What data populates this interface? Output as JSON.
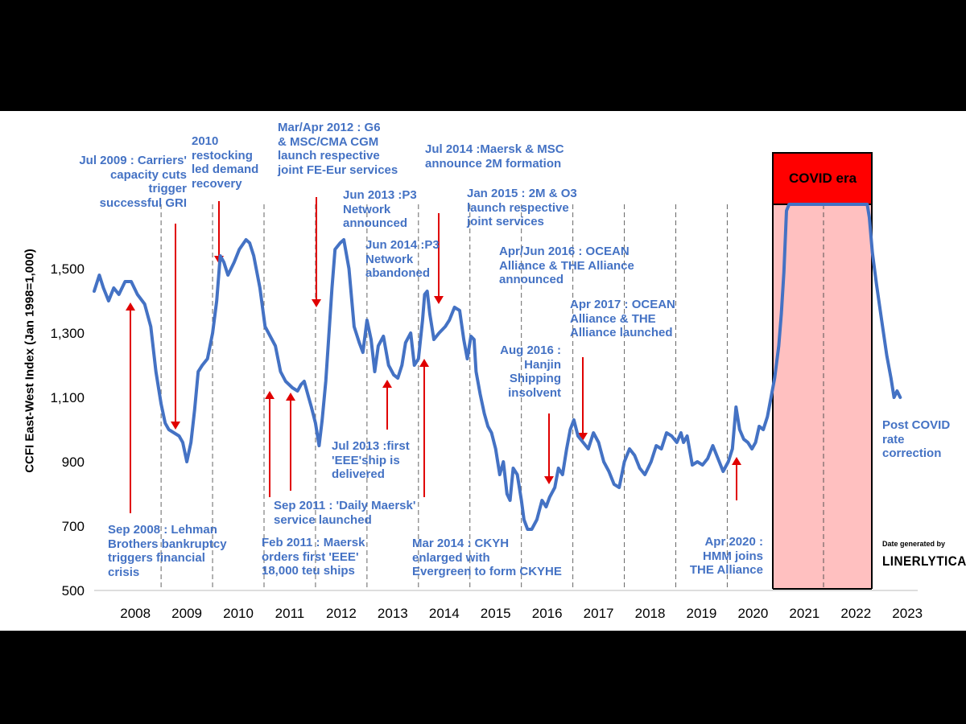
{
  "chart_data": {
    "type": "line",
    "ylabel": "CCFI East-West Index (Jan 1998=1,000)",
    "ylim": [
      500,
      1700
    ],
    "y_ticks": [
      500,
      700,
      900,
      1100,
      1300,
      1500
    ],
    "y_tick_labels": [
      "500",
      "700",
      "900",
      "1,100",
      "1,300",
      "1,500"
    ],
    "x_tick_labels": [
      "2008",
      "2009",
      "2010",
      "2011",
      "2012",
      "2013",
      "2014",
      "2015",
      "2016",
      "2017",
      "2018",
      "2019",
      "2020",
      "2021",
      "2022",
      "2023"
    ],
    "x_start": 2007.6,
    "x_end": 2023.6,
    "line_color": "#4472c4",
    "arrow_color": "#e00000",
    "series": [
      {
        "name": "CCFI East-West Index",
        "points": [
          [
            2007.6,
            1430
          ],
          [
            2007.7,
            1480
          ],
          [
            2007.78,
            1440
          ],
          [
            2007.88,
            1400
          ],
          [
            2007.98,
            1440
          ],
          [
            2008.08,
            1420
          ],
          [
            2008.2,
            1460
          ],
          [
            2008.32,
            1460
          ],
          [
            2008.44,
            1420
          ],
          [
            2008.58,
            1390
          ],
          [
            2008.7,
            1320
          ],
          [
            2008.8,
            1180
          ],
          [
            2008.9,
            1080
          ],
          [
            2008.98,
            1020
          ],
          [
            2009.05,
            1000
          ],
          [
            2009.15,
            990
          ],
          [
            2009.25,
            980
          ],
          [
            2009.32,
            960
          ],
          [
            2009.4,
            900
          ],
          [
            2009.48,
            960
          ],
          [
            2009.55,
            1060
          ],
          [
            2009.62,
            1180
          ],
          [
            2009.7,
            1200
          ],
          [
            2009.8,
            1220
          ],
          [
            2009.9,
            1300
          ],
          [
            2009.98,
            1400
          ],
          [
            2010.05,
            1540
          ],
          [
            2010.12,
            1520
          ],
          [
            2010.2,
            1480
          ],
          [
            2010.32,
            1520
          ],
          [
            2010.42,
            1560
          ],
          [
            2010.55,
            1590
          ],
          [
            2010.62,
            1580
          ],
          [
            2010.7,
            1540
          ],
          [
            2010.82,
            1440
          ],
          [
            2010.92,
            1320
          ],
          [
            2011.02,
            1290
          ],
          [
            2011.12,
            1260
          ],
          [
            2011.22,
            1180
          ],
          [
            2011.32,
            1150
          ],
          [
            2011.45,
            1130
          ],
          [
            2011.55,
            1120
          ],
          [
            2011.62,
            1140
          ],
          [
            2011.68,
            1150
          ],
          [
            2011.75,
            1110
          ],
          [
            2011.82,
            1070
          ],
          [
            2011.9,
            1020
          ],
          [
            2011.97,
            950
          ],
          [
            2012.03,
            1030
          ],
          [
            2012.1,
            1150
          ],
          [
            2012.15,
            1270
          ],
          [
            2012.22,
            1440
          ],
          [
            2012.28,
            1560
          ],
          [
            2012.38,
            1580
          ],
          [
            2012.45,
            1590
          ],
          [
            2012.55,
            1500
          ],
          [
            2012.65,
            1320
          ],
          [
            2012.75,
            1270
          ],
          [
            2012.82,
            1240
          ],
          [
            2012.9,
            1340
          ],
          [
            2012.98,
            1280
          ],
          [
            2013.05,
            1180
          ],
          [
            2013.12,
            1260
          ],
          [
            2013.22,
            1290
          ],
          [
            2013.32,
            1200
          ],
          [
            2013.42,
            1170
          ],
          [
            2013.5,
            1160
          ],
          [
            2013.58,
            1200
          ],
          [
            2013.65,
            1270
          ],
          [
            2013.75,
            1300
          ],
          [
            2013.82,
            1200
          ],
          [
            2013.9,
            1220
          ],
          [
            2013.98,
            1340
          ],
          [
            2014.02,
            1420
          ],
          [
            2014.07,
            1430
          ],
          [
            2014.12,
            1360
          ],
          [
            2014.2,
            1280
          ],
          [
            2014.3,
            1300
          ],
          [
            2014.42,
            1320
          ],
          [
            2014.5,
            1340
          ],
          [
            2014.6,
            1380
          ],
          [
            2014.7,
            1370
          ],
          [
            2014.78,
            1280
          ],
          [
            2014.85,
            1220
          ],
          [
            2014.92,
            1290
          ],
          [
            2014.98,
            1280
          ],
          [
            2015.02,
            1180
          ],
          [
            2015.1,
            1110
          ],
          [
            2015.18,
            1050
          ],
          [
            2015.25,
            1010
          ],
          [
            2015.32,
            990
          ],
          [
            2015.4,
            940
          ],
          [
            2015.48,
            860
          ],
          [
            2015.55,
            900
          ],
          [
            2015.62,
            800
          ],
          [
            2015.68,
            780
          ],
          [
            2015.74,
            880
          ],
          [
            2015.82,
            860
          ],
          [
            2015.9,
            780
          ],
          [
            2015.95,
            720
          ],
          [
            2016.02,
            690
          ],
          [
            2016.1,
            690
          ],
          [
            2016.2,
            720
          ],
          [
            2016.3,
            780
          ],
          [
            2016.38,
            760
          ],
          [
            2016.45,
            790
          ],
          [
            2016.55,
            820
          ],
          [
            2016.62,
            880
          ],
          [
            2016.7,
            860
          ],
          [
            2016.78,
            940
          ],
          [
            2016.85,
            1000
          ],
          [
            2016.92,
            1030
          ],
          [
            2017.0,
            980
          ],
          [
            2017.1,
            960
          ],
          [
            2017.2,
            940
          ],
          [
            2017.3,
            990
          ],
          [
            2017.4,
            960
          ],
          [
            2017.5,
            900
          ],
          [
            2017.6,
            870
          ],
          [
            2017.7,
            830
          ],
          [
            2017.8,
            820
          ],
          [
            2017.9,
            900
          ],
          [
            2018.0,
            940
          ],
          [
            2018.1,
            920
          ],
          [
            2018.2,
            880
          ],
          [
            2018.3,
            860
          ],
          [
            2018.42,
            900
          ],
          [
            2018.52,
            950
          ],
          [
            2018.62,
            940
          ],
          [
            2018.72,
            990
          ],
          [
            2018.82,
            980
          ],
          [
            2018.92,
            960
          ],
          [
            2019.0,
            990
          ],
          [
            2019.05,
            960
          ],
          [
            2019.12,
            980
          ],
          [
            2019.22,
            890
          ],
          [
            2019.32,
            900
          ],
          [
            2019.42,
            890
          ],
          [
            2019.52,
            910
          ],
          [
            2019.62,
            950
          ],
          [
            2019.72,
            910
          ],
          [
            2019.82,
            870
          ],
          [
            2019.92,
            900
          ],
          [
            2020.0,
            940
          ],
          [
            2020.07,
            1070
          ],
          [
            2020.14,
            1000
          ],
          [
            2020.22,
            970
          ],
          [
            2020.3,
            960
          ],
          [
            2020.38,
            940
          ],
          [
            2020.45,
            960
          ],
          [
            2020.52,
            1010
          ],
          [
            2020.6,
            1000
          ],
          [
            2020.68,
            1040
          ],
          [
            2020.75,
            1100
          ],
          [
            2020.82,
            1160
          ],
          [
            2020.9,
            1260
          ],
          [
            2020.95,
            1360
          ],
          [
            2021.0,
            1490
          ],
          [
            2021.05,
            1680
          ],
          [
            2021.1,
            1700
          ],
          [
            2021.3,
            1700
          ],
          [
            2021.5,
            1700
          ],
          [
            2021.7,
            1700
          ],
          [
            2021.9,
            1700
          ],
          [
            2022.1,
            1700
          ],
          [
            2022.3,
            1700
          ],
          [
            2022.5,
            1700
          ],
          [
            2022.62,
            1700
          ],
          [
            2022.66,
            1660
          ],
          [
            2022.72,
            1550
          ],
          [
            2022.8,
            1450
          ],
          [
            2022.9,
            1340
          ],
          [
            2023.0,
            1230
          ],
          [
            2023.08,
            1160
          ],
          [
            2023.14,
            1100
          ],
          [
            2023.2,
            1120
          ],
          [
            2023.26,
            1100
          ]
        ]
      }
    ],
    "annotations": {
      "sep2008": "Sep 2008 : Lehman\nBrothers bankruptcy\ntriggers financial\ncrisis",
      "jul2009": "Jul 2009 : Carriers'\ncapacity cuts\ntrigger\nsuccessful GRI",
      "y2010": "2010\nrestocking\nled demand\nrecovery",
      "feb2011": "Feb 2011 : Maersk\norders first 'EEE'\n18,000 teu ships",
      "sep2011": "Sep 2011 : 'Daily Maersk'\nservice launched",
      "mar2012": "Mar/Apr 2012 : G6\n& MSC/CMA CGM\nlaunch respective\njoint FE-Eur services",
      "jun2013": "Jun 2013 :P3\nNetwork\nannounced",
      "jul2013": "Jul 2013 :first\n'EEE'ship is\ndelivered",
      "jun2014": "Jun 2014 :P3\nNetwork\nabandoned",
      "jul2014": "Jul 2014 :Maersk & MSC\nannounce 2M formation",
      "mar2014": "Mar 2014 : CKYH\nenlarged with\nEvergreen to form CKYHE",
      "jan2015": "Jan 2015 : 2M & O3\nlaunch respective\njoint services",
      "aprjun2016": "Apr/Jun 2016 : OCEAN\nAlliance & THE Alliance\nannounced",
      "aug2016": "Aug 2016 :\nHanjin\nShipping\ninsolvent",
      "apr2017": "Apr 2017 : OCEAN\nAlliance & THE\nAlliance launched",
      "apr2020": "Apr 2020 :\nHMM joins\nTHE Alliance",
      "covid_label": "COVID era",
      "post_covid": "Post COVID\nrate\ncorrection"
    },
    "credit_line1": "Date generated by",
    "credit_line2": "LINERLYTICA"
  }
}
